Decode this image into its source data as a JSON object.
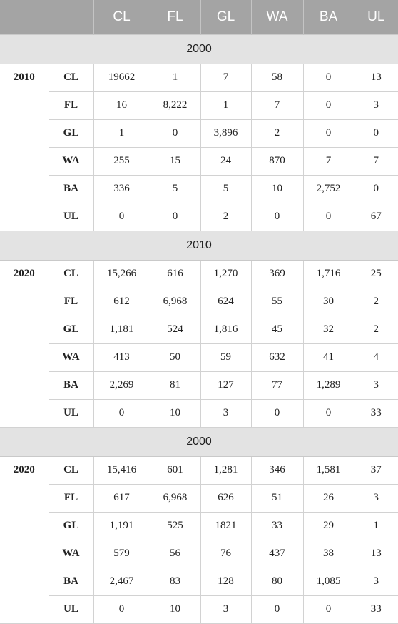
{
  "header": [
    "",
    "",
    "CL",
    "FL",
    "GL",
    "WA",
    "BA",
    "UL"
  ],
  "sections": [
    {
      "from_year": "2000",
      "to_year": "2010",
      "rows": [
        {
          "cls": "CL",
          "values": [
            "19662",
            "1",
            "7",
            "58",
            "0",
            "13"
          ]
        },
        {
          "cls": "FL",
          "values": [
            "16",
            "8,222",
            "1",
            "7",
            "0",
            "3"
          ]
        },
        {
          "cls": "GL",
          "values": [
            "1",
            "0",
            "3,896",
            "2",
            "0",
            "0"
          ]
        },
        {
          "cls": "WA",
          "values": [
            "255",
            "15",
            "24",
            "870",
            "7",
            "7"
          ]
        },
        {
          "cls": "BA",
          "values": [
            "336",
            "5",
            "5",
            "10",
            "2,752",
            "0"
          ]
        },
        {
          "cls": "UL",
          "values": [
            "0",
            "0",
            "2",
            "0",
            "0",
            "67"
          ]
        }
      ]
    },
    {
      "from_year": "2010",
      "to_year": "2020",
      "rows": [
        {
          "cls": "CL",
          "values": [
            "15,266",
            "616",
            "1,270",
            "369",
            "1,716",
            "25"
          ]
        },
        {
          "cls": "FL",
          "values": [
            "612",
            "6,968",
            "624",
            "55",
            "30",
            "2"
          ]
        },
        {
          "cls": "GL",
          "values": [
            "1,181",
            "524",
            "1,816",
            "45",
            "32",
            "2"
          ]
        },
        {
          "cls": "WA",
          "values": [
            "413",
            "50",
            "59",
            "632",
            "41",
            "4"
          ]
        },
        {
          "cls": "BA",
          "values": [
            "2,269",
            "81",
            "127",
            "77",
            "1,289",
            "3"
          ]
        },
        {
          "cls": "UL",
          "values": [
            "0",
            "10",
            "3",
            "0",
            "0",
            "33"
          ]
        }
      ]
    },
    {
      "from_year": "2000",
      "to_year": "2020",
      "rows": [
        {
          "cls": "CL",
          "values": [
            "15,416",
            "601",
            "1,281",
            "346",
            "1,581",
            "37"
          ]
        },
        {
          "cls": "FL",
          "values": [
            "617",
            "6,968",
            "626",
            "51",
            "26",
            "3"
          ]
        },
        {
          "cls": "GL",
          "values": [
            "1,191",
            "525",
            "1821",
            "33",
            "29",
            "1"
          ]
        },
        {
          "cls": "WA",
          "values": [
            "579",
            "56",
            "76",
            "437",
            "38",
            "13"
          ]
        },
        {
          "cls": "BA",
          "values": [
            "2,467",
            "83",
            "128",
            "80",
            "1,085",
            "3"
          ]
        },
        {
          "cls": "UL",
          "values": [
            "0",
            "10",
            "3",
            "0",
            "0",
            "33"
          ]
        }
      ]
    }
  ]
}
